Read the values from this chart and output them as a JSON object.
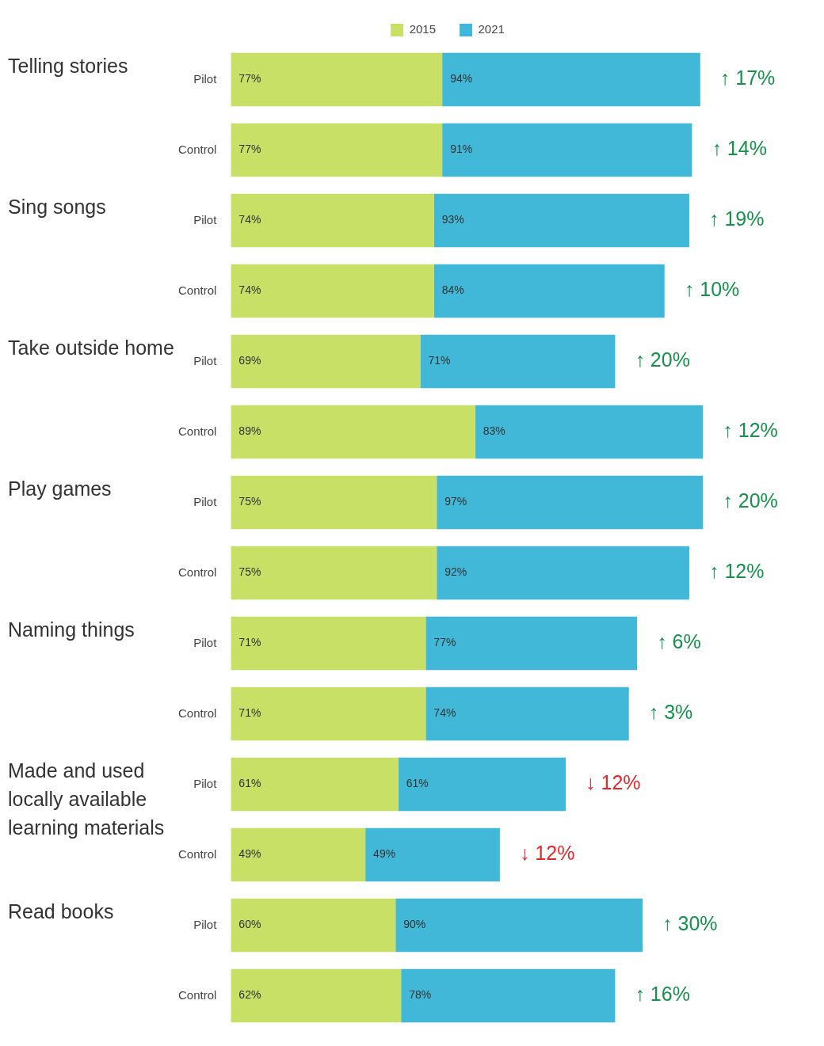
{
  "chart_data": {
    "type": "bar",
    "orientation": "horizontal",
    "stacked": true,
    "legend": "top",
    "categories": [
      "Pilot",
      "Control",
      "Pilot",
      "Control",
      "Pilot",
      "Control",
      "Pilot",
      "Control",
      "Pilot",
      "Control",
      "Pilot",
      "Control",
      "Pilot",
      "Control"
    ],
    "series": [
      {
        "name": "2015",
        "color": "#c8e066",
        "values": [
          77,
          77,
          74,
          74,
          69,
          89,
          75,
          75,
          71,
          71,
          61,
          49,
          60,
          62
        ],
        "value_labels": [
          "77%",
          "77%",
          "74%",
          "74%",
          "69%",
          "89%",
          "75%",
          "75%",
          "71%",
          "71%",
          "61%",
          "49%",
          "60%",
          "62%"
        ]
      },
      {
        "name": "2021",
        "color": "#42b8d8",
        "values": [
          94,
          91,
          93,
          84,
          71,
          83,
          97,
          92,
          77,
          74,
          61,
          49,
          90,
          78
        ],
        "value_labels": [
          "94%",
          "91%",
          "93%",
          "84%",
          "71%",
          "83%",
          "97%",
          "92%",
          "77%",
          "74%",
          "61%",
          "49%",
          "90%",
          "78%"
        ]
      }
    ],
    "annotations": [
      "Telling stories",
      "Sing songs",
      "Take outside home",
      "Play games",
      "Naming things",
      "Made and used locally available learning materials",
      "Read books",
      "↑ 17%",
      "↑ 14%",
      "↑ 19%",
      "↑ 10%",
      "↑ 20%",
      "↑ 12%",
      "↑ 20%",
      "↑ 12%",
      "↑ 6%",
      "↑ 3%",
      "↓ 12%",
      "↓ 12%",
      "↑ 30%",
      "↑ 16%"
    ]
  }
}
